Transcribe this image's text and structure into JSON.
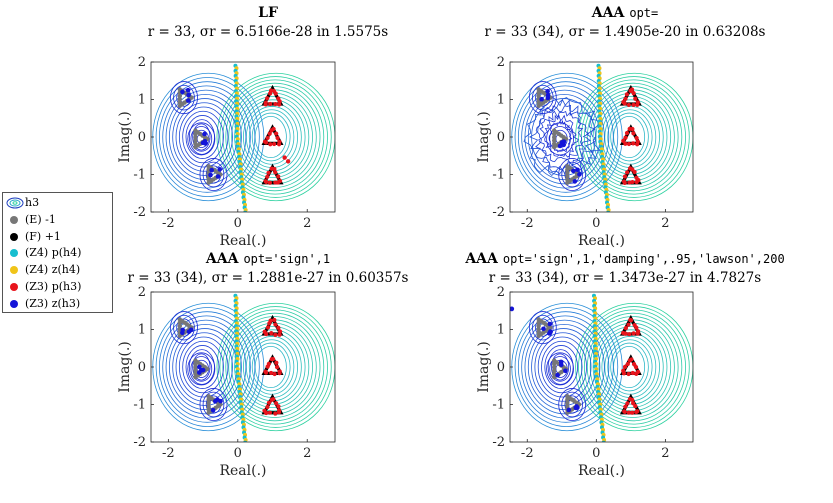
{
  "figure": {
    "legend": {
      "entries": [
        {
          "label": "h3",
          "marker": "contour-icon",
          "color": "#1f3fbf"
        },
        {
          "label": "(E) -1",
          "marker": "dot",
          "color": "#777777"
        },
        {
          "label": "(F) +1",
          "marker": "dot",
          "color": "#000000"
        },
        {
          "label": "(Z4) p(h4)",
          "marker": "dot",
          "color": "#17becf"
        },
        {
          "label": "(Z4) z(h4)",
          "marker": "dot",
          "color": "#f0c419"
        },
        {
          "label": "(Z3) p(h3)",
          "marker": "dot",
          "color": "#e8141c"
        },
        {
          "label": "(Z3) z(h3)",
          "marker": "dot",
          "color": "#1414d8"
        }
      ]
    },
    "colors": {
      "contour_low": "#1a2bd6",
      "contour_high": "#2ed1a0",
      "neg_one": "#777777",
      "pos_one": "#000000",
      "p_h4": "#17becf",
      "z_h4": "#f0c419",
      "p_h3": "#e8141c",
      "z_h3": "#1414d8"
    }
  },
  "chart_data": [
    {
      "type": "scatter",
      "title": "LF",
      "subtitle": "r = 33, σr = 6.5166e-28 in 1.5575s",
      "xlabel": "Real(.)",
      "ylabel": "Imag(.)",
      "xlim": [
        -2.5,
        2.8
      ],
      "ylim": [
        -2,
        2
      ],
      "xticks": [
        "-2",
        "0",
        "2"
      ],
      "yticks": [
        "2",
        "1",
        "0",
        "-1",
        "-2"
      ],
      "noisy_contours": false
    },
    {
      "type": "scatter",
      "title": "AAA",
      "title_code": "opt=",
      "subtitle": "r = 33 (34), σr = 1.4905e-20 in 0.63208s",
      "xlabel": "Real(.)",
      "ylabel": "Imag(.)",
      "xlim": [
        -2.5,
        2.8
      ],
      "ylim": [
        -2,
        2
      ],
      "xticks": [
        "-2",
        "0",
        "2"
      ],
      "yticks": [
        "2",
        "1",
        "0",
        "-1",
        "-2"
      ],
      "noisy_contours": true
    },
    {
      "type": "scatter",
      "title": "AAA",
      "title_code": "opt='sign',1",
      "subtitle": "r = 33 (34), σr = 1.2881e-27 in 0.60357s",
      "xlabel": "Real(.)",
      "ylabel": "Imag(.)",
      "xlim": [
        -2.5,
        2.8
      ],
      "ylim": [
        -2,
        2
      ],
      "xticks": [
        "-2",
        "0",
        "2"
      ],
      "yticks": [
        "2",
        "1",
        "0",
        "-1",
        "-2"
      ],
      "noisy_contours": false
    },
    {
      "type": "scatter",
      "title": "AAA",
      "title_code": "opt='sign',1,'damping',.95,'lawson',200",
      "subtitle": "r = 33 (34), σr = 1.3473e-27 in 4.7827s",
      "xlabel": "Real(.)",
      "ylabel": "Imag(.)",
      "xlim": [
        -2.5,
        2.8
      ],
      "ylim": [
        -2,
        2
      ],
      "xticks": [
        "-2",
        "0",
        "2"
      ],
      "yticks": [
        "2",
        "1",
        "0",
        "-1",
        "-2"
      ],
      "noisy_contours": false
    }
  ]
}
